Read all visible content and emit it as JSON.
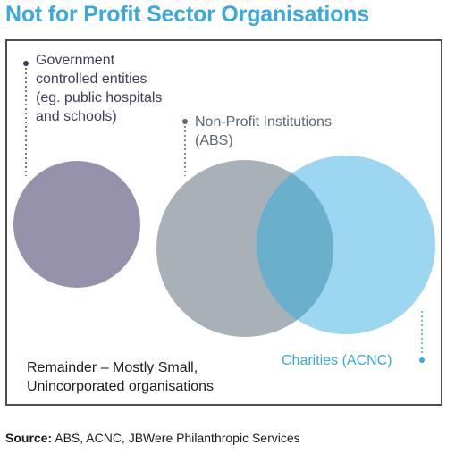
{
  "title": "Not for Profit Sector Organisations",
  "diagram": {
    "government": {
      "label_lines": [
        "Government",
        "controlled entities",
        "(eg. public hospitals",
        "and schools)"
      ]
    },
    "non_profit_institutions": {
      "label_lines": [
        "Non-Profit Institutions",
        "(ABS)"
      ]
    },
    "charities": {
      "label": "Charities (ACNC)"
    },
    "remainder": {
      "label_lines": [
        "Remainder – Mostly Small,",
        "Unincorporated organisations"
      ]
    }
  },
  "source": {
    "prefix": "Source:",
    "text": " ABS, ACNC, JBWere Philanthropic Services"
  },
  "colors": {
    "title": "#3aa7dd",
    "government_circle": "#9792ab",
    "npi_circle": "#a8b1b7",
    "charities_circle": "#9dd6f1",
    "overlap": "#6ab0cc"
  }
}
